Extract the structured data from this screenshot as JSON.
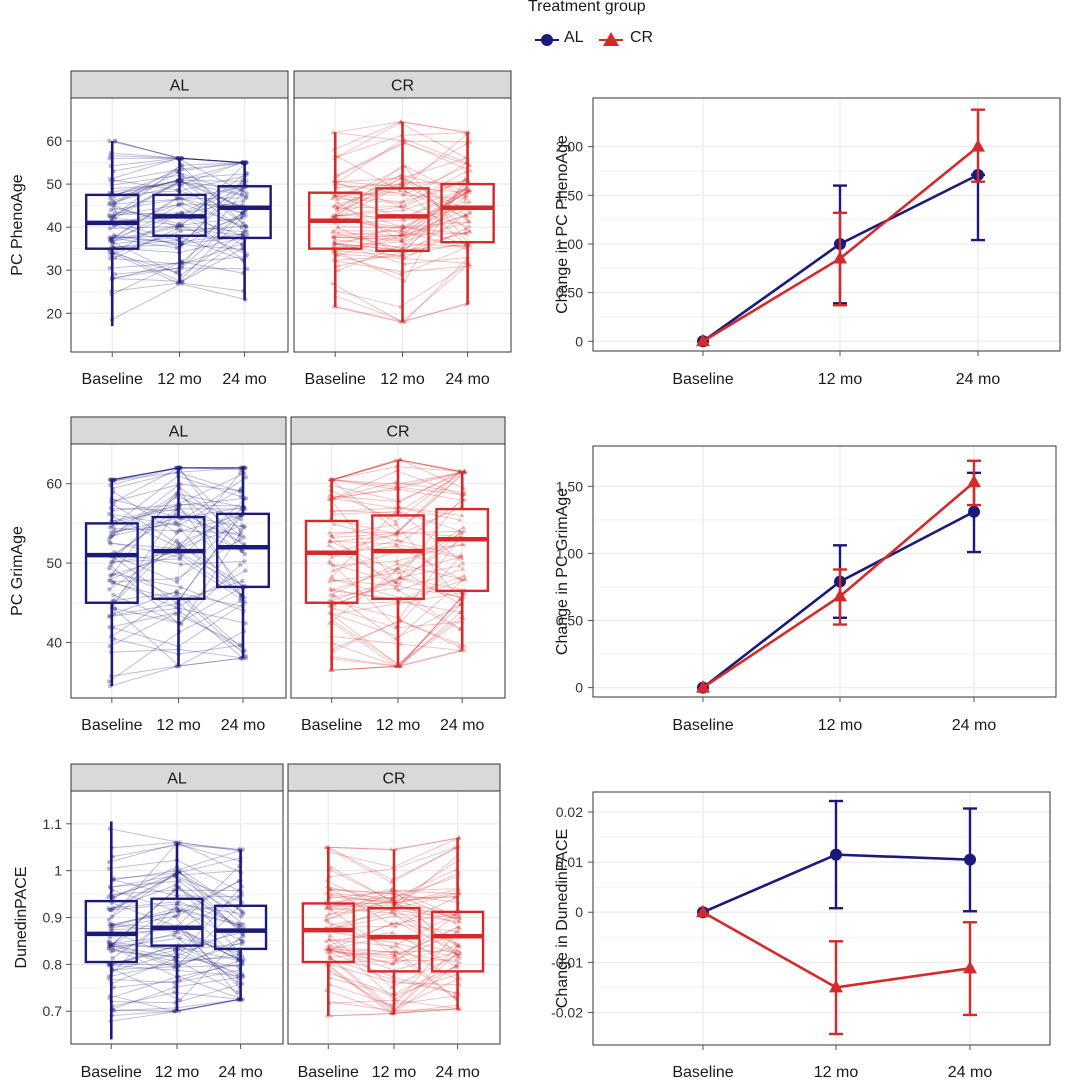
{
  "legend": {
    "title": "Treatment group",
    "entries": [
      {
        "label": "AL",
        "color": "#1a1a7a",
        "marker": "circle"
      },
      {
        "label": "CR",
        "color": "#d42a2a",
        "marker": "triangle"
      }
    ]
  },
  "colors": {
    "AL": "#1a1a7a",
    "CR": "#d42a2a",
    "strip_fill": "#d9d9d9",
    "grid": "#ebebeb"
  },
  "chart_data": [
    {
      "type": "box",
      "ylabel": "PC PhenoAge",
      "categories": [
        "Baseline",
        "12 mo",
        "24 mo"
      ],
      "yticks": [
        20,
        30,
        40,
        50,
        60
      ],
      "ylim": [
        11,
        70
      ],
      "facets": [
        {
          "name": "AL",
          "boxes": [
            {
              "lower": 17,
              "q1": 35,
              "median": 41,
              "q3": 47.5,
              "upper": 60
            },
            {
              "lower": 27,
              "q1": 38,
              "median": 42.5,
              "q3": 47.5,
              "upper": 56
            },
            {
              "lower": 23,
              "q1": 37.5,
              "median": 44.5,
              "q3": 49.5,
              "upper": 55
            }
          ]
        },
        {
          "name": "CR",
          "boxes": [
            {
              "lower": 21.5,
              "q1": 35,
              "median": 41.5,
              "q3": 48,
              "upper": 62
            },
            {
              "lower": 18,
              "q1": 34.5,
              "median": 42.5,
              "q3": 49,
              "upper": 64.5
            },
            {
              "lower": 22,
              "q1": 36.5,
              "median": 44.5,
              "q3": 50,
              "upper": 62
            }
          ]
        }
      ]
    },
    {
      "type": "line",
      "ylabel": "Change in PC PhenoAge",
      "x": [
        "Baseline",
        "12 mo",
        "24 mo"
      ],
      "yticks": [
        0,
        0.5,
        1.0,
        1.5,
        2.0
      ],
      "ytick_labels": [
        "0",
        "0.50",
        "1.00",
        "1.50",
        "2.00"
      ],
      "ylim": [
        -0.1,
        2.5
      ],
      "series": [
        {
          "name": "AL",
          "values": [
            0,
            1.0,
            1.71
          ],
          "lower": [
            0,
            0.39,
            1.04
          ],
          "upper": [
            0,
            1.6,
            1.71
          ]
        },
        {
          "name": "CR",
          "values": [
            0,
            0.85,
            2.0
          ],
          "lower": [
            0,
            0.37,
            1.64
          ],
          "upper": [
            0,
            1.32,
            2.38
          ]
        }
      ]
    },
    {
      "type": "box",
      "ylabel": "PC GrimAge",
      "categories": [
        "Baseline",
        "12 mo",
        "24 mo"
      ],
      "yticks": [
        40,
        50,
        60
      ],
      "ylim": [
        33,
        65
      ],
      "facets": [
        {
          "name": "AL",
          "boxes": [
            {
              "lower": 34.5,
              "q1": 45,
              "median": 51,
              "q3": 55,
              "upper": 60.5
            },
            {
              "lower": 37,
              "q1": 45.5,
              "median": 51.5,
              "q3": 55.8,
              "upper": 62
            },
            {
              "lower": 38,
              "q1": 47,
              "median": 52,
              "q3": 56.2,
              "upper": 62
            }
          ]
        },
        {
          "name": "CR",
          "boxes": [
            {
              "lower": 36.5,
              "q1": 45,
              "median": 51.3,
              "q3": 55.3,
              "upper": 60.5
            },
            {
              "lower": 37,
              "q1": 45.5,
              "median": 51.5,
              "q3": 56,
              "upper": 63
            },
            {
              "lower": 39,
              "q1": 46.5,
              "median": 53,
              "q3": 56.8,
              "upper": 61.5
            }
          ]
        }
      ]
    },
    {
      "type": "line",
      "ylabel": "Change in PC GrimAge",
      "x": [
        "Baseline",
        "12 mo",
        "24 mo"
      ],
      "yticks": [
        0,
        0.5,
        1.0,
        1.5
      ],
      "ytick_labels": [
        "0",
        "0.50",
        "1.00",
        "1.50"
      ],
      "ylim": [
        -0.07,
        1.8
      ],
      "series": [
        {
          "name": "AL",
          "values": [
            0,
            0.79,
            1.31
          ],
          "lower": [
            0,
            0.52,
            1.01
          ],
          "upper": [
            0,
            1.06,
            1.6
          ]
        },
        {
          "name": "CR",
          "values": [
            0,
            0.68,
            1.53
          ],
          "lower": [
            0,
            0.47,
            1.36
          ],
          "upper": [
            0,
            0.88,
            1.69
          ]
        }
      ]
    },
    {
      "type": "box",
      "ylabel": "DunedinPACE",
      "categories": [
        "Baseline",
        "12 mo",
        "24 mo"
      ],
      "yticks": [
        0.7,
        0.8,
        0.9,
        1.0,
        1.1
      ],
      "ylim": [
        0.63,
        1.17
      ],
      "facets": [
        {
          "name": "AL",
          "boxes": [
            {
              "lower": 0.64,
              "q1": 0.805,
              "median": 0.865,
              "q3": 0.935,
              "upper": 1.105
            },
            {
              "lower": 0.7,
              "q1": 0.84,
              "median": 0.878,
              "q3": 0.94,
              "upper": 1.06
            },
            {
              "lower": 0.725,
              "q1": 0.833,
              "median": 0.872,
              "q3": 0.925,
              "upper": 1.045
            }
          ]
        },
        {
          "name": "CR",
          "boxes": [
            {
              "lower": 0.69,
              "q1": 0.805,
              "median": 0.873,
              "q3": 0.93,
              "upper": 1.05
            },
            {
              "lower": 0.695,
              "q1": 0.785,
              "median": 0.858,
              "q3": 0.92,
              "upper": 1.045
            },
            {
              "lower": 0.705,
              "q1": 0.785,
              "median": 0.86,
              "q3": 0.912,
              "upper": 1.07
            }
          ]
        }
      ]
    },
    {
      "type": "line",
      "ylabel": "Change in DunedinPACE",
      "x": [
        "Baseline",
        "12 mo",
        "24 mo"
      ],
      "yticks": [
        -0.02,
        -0.01,
        0,
        0.01,
        0.02
      ],
      "ytick_labels": [
        "-0.02",
        "-0.01",
        "0",
        "0.01",
        "0.02"
      ],
      "ylim": [
        -0.0265,
        0.024
      ],
      "series": [
        {
          "name": "AL",
          "values": [
            0,
            0.0115,
            0.0105
          ],
          "lower": [
            0,
            0.0008,
            0.0002
          ],
          "upper": [
            0,
            0.0222,
            0.0207
          ]
        },
        {
          "name": "CR",
          "values": [
            0,
            -0.015,
            -0.0112
          ],
          "lower": [
            0,
            -0.0243,
            -0.0205
          ],
          "upper": [
            0,
            -0.0058,
            -0.002
          ]
        }
      ]
    }
  ]
}
